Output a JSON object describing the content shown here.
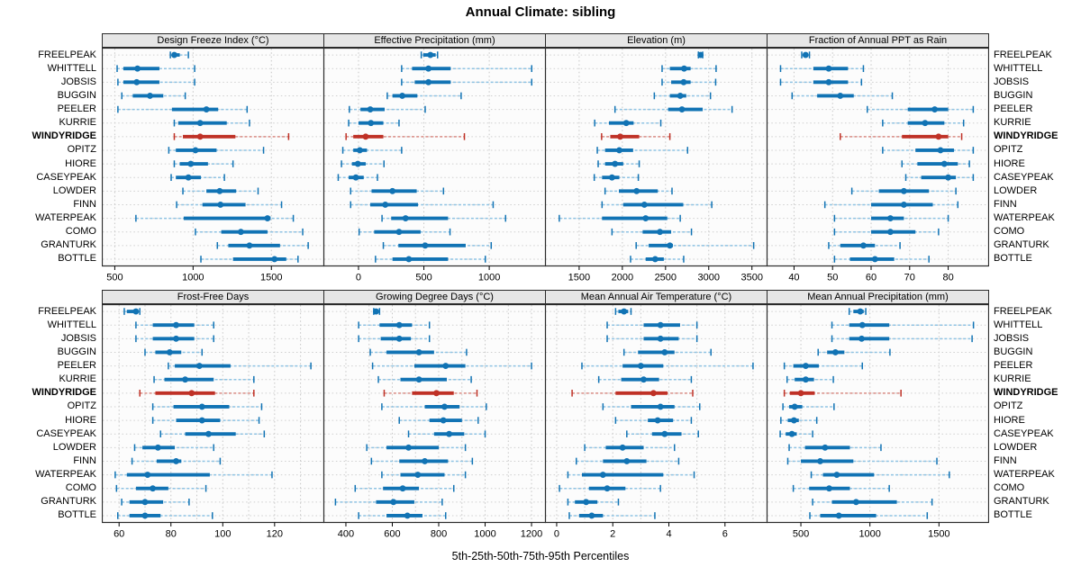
{
  "title": "Annual Climate: sibling",
  "caption": "5th-25th-50th-75th-95th Percentiles",
  "highlight_site": "WINDYRIDGE",
  "colors": {
    "series_blue": "#1173b4",
    "series_blue_light": "#8fc3e3",
    "highlight_red": "#bf3126",
    "highlight_red_light": "#d98d85",
    "header_bg": "#e6e6e6",
    "panel_border": "#2b2b2b",
    "grid": "#c6c6c6",
    "row_guide": "#cfcfcf",
    "panel_bg": "#fcfcfc"
  },
  "sites": [
    "FREELPEAK",
    "WHITTELL",
    "JOBSIS",
    "BUGGIN",
    "PEELER",
    "KURRIE",
    "WINDYRIDGE",
    "OPITZ",
    "HIORE",
    "CASEYPEAK",
    "LOWDER",
    "FINN",
    "WATERPEAK",
    "COMO",
    "GRANTURK",
    "BOTTLE"
  ],
  "percentiles": [
    "5th",
    "25th",
    "50th",
    "75th",
    "95th"
  ],
  "chart_data": [
    {
      "type": "percentile-dotplot",
      "title": "Design Freeze Index (°C)",
      "xlim": [
        420,
        1835
      ],
      "ticks": [
        500,
        1000,
        1500
      ],
      "minor_grid": false,
      "values": [
        [
          855,
          865,
          880,
          915,
          970
        ],
        [
          515,
          555,
          645,
          785,
          1010
        ],
        [
          520,
          555,
          640,
          785,
          1010
        ],
        [
          545,
          615,
          725,
          810,
          950
        ],
        [
          520,
          865,
          1085,
          1160,
          1345
        ],
        [
          880,
          905,
          1045,
          1215,
          1360
        ],
        [
          880,
          935,
          1045,
          1270,
          1610
        ],
        [
          845,
          890,
          1015,
          1150,
          1450
        ],
        [
          880,
          915,
          985,
          1095,
          1255
        ],
        [
          860,
          890,
          970,
          1050,
          1200
        ],
        [
          935,
          1085,
          1170,
          1275,
          1415
        ],
        [
          895,
          1060,
          1175,
          1335,
          1565
        ],
        [
          635,
          940,
          1475,
          1495,
          1640
        ],
        [
          1015,
          1180,
          1305,
          1475,
          1700
        ],
        [
          1155,
          1225,
          1360,
          1555,
          1735
        ],
        [
          1050,
          1255,
          1520,
          1595,
          1670
        ]
      ]
    },
    {
      "type": "percentile-dotplot",
      "title": "Effective Precipitation (mm)",
      "xlim": [
        -265,
        1430
      ],
      "ticks": [
        0,
        500,
        1000
      ],
      "minor_grid": false,
      "values": [
        [
          480,
          495,
          550,
          590,
          605
        ],
        [
          330,
          410,
          535,
          705,
          1325
        ],
        [
          330,
          430,
          535,
          705,
          1325
        ],
        [
          220,
          260,
          335,
          450,
          785
        ],
        [
          -70,
          15,
          90,
          200,
          510
        ],
        [
          -75,
          0,
          95,
          190,
          310
        ],
        [
          -95,
          -40,
          55,
          190,
          810
        ],
        [
          -120,
          -40,
          10,
          65,
          330
        ],
        [
          -130,
          -50,
          -5,
          55,
          195
        ],
        [
          -155,
          -75,
          -20,
          40,
          145
        ],
        [
          -60,
          100,
          260,
          445,
          650
        ],
        [
          -60,
          90,
          205,
          455,
          1030
        ],
        [
          180,
          250,
          360,
          685,
          1125
        ],
        [
          5,
          120,
          310,
          475,
          700
        ],
        [
          190,
          305,
          510,
          820,
          1015
        ],
        [
          130,
          260,
          385,
          685,
          970
        ]
      ]
    },
    {
      "type": "percentile-dotplot",
      "title": "Elevation (m)",
      "xlim": [
        1110,
        3675
      ],
      "ticks": [
        1500,
        2000,
        2500,
        3000,
        3500
      ],
      "minor_grid": false,
      "values": [
        [
          2880,
          2895,
          2905,
          2915,
          2930
        ],
        [
          2460,
          2550,
          2715,
          2790,
          3085
        ],
        [
          2460,
          2565,
          2710,
          2790,
          3080
        ],
        [
          2370,
          2550,
          2670,
          2740,
          3020
        ],
        [
          1915,
          2530,
          2690,
          2930,
          3270
        ],
        [
          1680,
          1845,
          2045,
          2130,
          2445
        ],
        [
          1760,
          1860,
          1975,
          2195,
          2550
        ],
        [
          1710,
          1800,
          1965,
          2125,
          2755
        ],
        [
          1720,
          1800,
          1915,
          2010,
          2195
        ],
        [
          1675,
          1765,
          1880,
          1965,
          2185
        ],
        [
          1800,
          1960,
          2165,
          2410,
          2575
        ],
        [
          1765,
          2010,
          2255,
          2705,
          3035
        ],
        [
          1270,
          1765,
          2270,
          2520,
          2670
        ],
        [
          1880,
          2235,
          2435,
          2565,
          2800
        ],
        [
          2160,
          2305,
          2550,
          2585,
          3520
        ],
        [
          2095,
          2270,
          2380,
          2480,
          2710
        ]
      ]
    },
    {
      "type": "percentile-dotplot",
      "title": "Fraction of Annual PPT as Rain",
      "xlim": [
        33,
        90.5
      ],
      "ticks": [
        40,
        50,
        60,
        70,
        80
      ],
      "minor_grid": false,
      "values": [
        [
          42,
          42.5,
          43,
          43.5,
          44
        ],
        [
          36.5,
          45,
          49,
          54,
          58
        ],
        [
          36.5,
          45,
          49,
          54,
          57.5
        ],
        [
          39.5,
          46,
          52,
          55.5,
          65.5
        ],
        [
          59,
          69.5,
          76.5,
          80,
          86.5
        ],
        [
          63,
          69.5,
          74,
          79,
          84
        ],
        [
          52,
          68,
          77.5,
          80,
          83.5
        ],
        [
          63,
          71.5,
          78,
          81.5,
          86.5
        ],
        [
          68,
          72,
          79,
          82.5,
          85.5
        ],
        [
          69,
          73,
          80,
          82,
          86.5
        ],
        [
          55,
          62,
          68.5,
          75,
          82
        ],
        [
          48,
          60,
          68.5,
          76,
          82.5
        ],
        [
          50.5,
          60,
          65,
          68.5,
          80
        ],
        [
          50.5,
          60,
          65,
          71.5,
          77.5
        ],
        [
          49,
          52,
          58,
          61,
          67.5
        ],
        [
          50.5,
          54.5,
          61,
          66,
          75
        ]
      ]
    },
    {
      "type": "percentile-dotplot",
      "title": "Frost-Free Days",
      "xlim": [
        53.5,
        139
      ],
      "ticks": [
        60,
        80,
        100,
        120
      ],
      "minor_grid": true,
      "values": [
        [
          62,
          63,
          66.5,
          67,
          68
        ],
        [
          66.5,
          73,
          82,
          89,
          96.5
        ],
        [
          66.5,
          73,
          82,
          89,
          96.5
        ],
        [
          70,
          74,
          79.5,
          84,
          92
        ],
        [
          79,
          81.5,
          91,
          103,
          134
        ],
        [
          73.5,
          77.5,
          85.5,
          96.5,
          112
        ],
        [
          68,
          74,
          88,
          97,
          112
        ],
        [
          73,
          81,
          92,
          102.5,
          115
        ],
        [
          73,
          82,
          92,
          99,
          114
        ],
        [
          76,
          85.5,
          94.5,
          105,
          116
        ],
        [
          66,
          69,
          75,
          81.5,
          96.5
        ],
        [
          65,
          74.5,
          82,
          84,
          99
        ],
        [
          58.5,
          63,
          71,
          95,
          119
        ],
        [
          59,
          66.5,
          73,
          79,
          93.5
        ],
        [
          61,
          64,
          70,
          77,
          87
        ],
        [
          59.5,
          64,
          70,
          76,
          96
        ]
      ]
    },
    {
      "type": "percentile-dotplot",
      "title": "Growing Degree Days (°C)",
      "xlim": [
        305,
        1260
      ],
      "ticks": [
        400,
        600,
        800,
        1000,
        1200
      ],
      "minor_grid": true,
      "values": [
        [
          520,
          525,
          530,
          535,
          545
        ],
        [
          455,
          545,
          630,
          685,
          760
        ],
        [
          455,
          550,
          630,
          680,
          760
        ],
        [
          505,
          575,
          715,
          780,
          920
        ],
        [
          515,
          695,
          830,
          915,
          1200
        ],
        [
          540,
          635,
          715,
          835,
          940
        ],
        [
          565,
          685,
          790,
          865,
          965
        ],
        [
          555,
          740,
          825,
          890,
          1005
        ],
        [
          630,
          760,
          820,
          900,
          970
        ],
        [
          670,
          780,
          845,
          910,
          1000
        ],
        [
          490,
          575,
          670,
          800,
          915
        ],
        [
          510,
          630,
          740,
          840,
          945
        ],
        [
          555,
          635,
          710,
          825,
          915
        ],
        [
          440,
          560,
          645,
          715,
          865
        ],
        [
          355,
          530,
          605,
          695,
          815
        ],
        [
          455,
          575,
          665,
          730,
          830
        ]
      ]
    },
    {
      "type": "percentile-dotplot",
      "title": "Mean Annual Air Temperature (°C)",
      "xlim": [
        -0.4,
        7.5
      ],
      "ticks": [
        0,
        2,
        4,
        6
      ],
      "minor_grid": true,
      "values": [
        [
          2.1,
          2.2,
          2.4,
          2.55,
          2.65
        ],
        [
          1.8,
          3.1,
          3.7,
          4.4,
          5.0
        ],
        [
          1.8,
          3.1,
          3.7,
          4.35,
          5.0
        ],
        [
          2.4,
          2.9,
          3.85,
          4.2,
          5.5
        ],
        [
          0.9,
          2.35,
          3.0,
          3.8,
          7.0
        ],
        [
          1.5,
          2.3,
          3.1,
          3.65,
          4.8
        ],
        [
          0.55,
          2.1,
          3.45,
          3.95,
          4.85
        ],
        [
          1.65,
          2.65,
          3.7,
          4.2,
          5.1
        ],
        [
          2.1,
          3.25,
          3.6,
          4.15,
          4.8
        ],
        [
          2.5,
          3.4,
          3.85,
          4.45,
          5.05
        ],
        [
          1.0,
          1.75,
          2.35,
          3.1,
          4.2
        ],
        [
          0.7,
          1.65,
          2.5,
          3.2,
          4.35
        ],
        [
          0.4,
          0.9,
          1.65,
          3.8,
          4.9
        ],
        [
          0.1,
          1.15,
          1.8,
          2.45,
          3.7
        ],
        [
          0.4,
          0.65,
          1.05,
          1.45,
          2.2
        ],
        [
          0.45,
          0.8,
          1.25,
          1.65,
          3.5
        ]
      ]
    },
    {
      "type": "percentile-dotplot",
      "title": "Mean Annual Precipitation (mm)",
      "xlim": [
        255,
        1860
      ],
      "ticks": [
        500,
        1000,
        1500
      ],
      "minor_grid": false,
      "values": [
        [
          850,
          880,
          930,
          955,
          970
        ],
        [
          725,
          850,
          945,
          1140,
          1750
        ],
        [
          725,
          850,
          940,
          1140,
          1740
        ],
        [
          625,
          690,
          750,
          815,
          1145
        ],
        [
          380,
          445,
          535,
          630,
          945
        ],
        [
          400,
          455,
          535,
          595,
          735
        ],
        [
          380,
          420,
          500,
          600,
          1225
        ],
        [
          370,
          415,
          455,
          510,
          740
        ],
        [
          355,
          405,
          450,
          485,
          615
        ],
        [
          350,
          390,
          435,
          470,
          585
        ],
        [
          415,
          530,
          675,
          855,
          1080
        ],
        [
          405,
          500,
          640,
          880,
          1485
        ],
        [
          575,
          660,
          760,
          1030,
          1575
        ],
        [
          445,
          560,
          705,
          855,
          1140
        ],
        [
          585,
          725,
          900,
          1195,
          1450
        ],
        [
          565,
          640,
          775,
          1045,
          1415
        ]
      ]
    }
  ]
}
